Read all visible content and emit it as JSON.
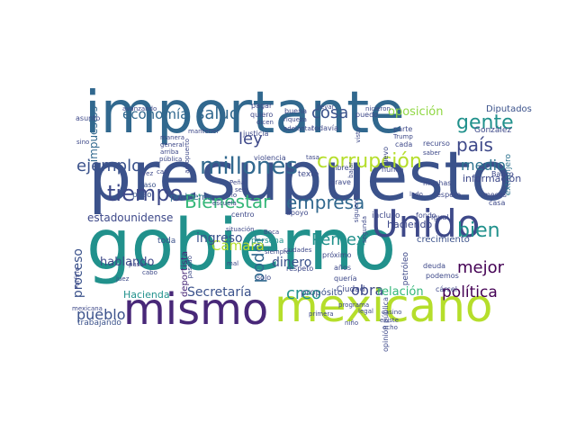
{
  "wordcloud": {
    "words": [
      {
        "text": "presupuesto",
        "color": "#3b528b"
      },
      {
        "text": "importante",
        "color": "#31688e"
      },
      {
        "text": "gobierno",
        "color": "#21918c"
      },
      {
        "text": "mismo",
        "color": "#482878"
      },
      {
        "text": "mexicano",
        "color": "#b5de2b"
      },
      {
        "text": "Unido",
        "color": "#3e4989"
      },
      {
        "text": "millones",
        "color": "#31688e"
      },
      {
        "text": "corrupción",
        "color": "#b5de2b"
      },
      {
        "text": "tiempo",
        "color": "#3e4989"
      },
      {
        "text": "empresa",
        "color": "#31688e"
      },
      {
        "text": "Bienestar",
        "color": "#35b779"
      },
      {
        "text": "Pemex",
        "color": "#21918c"
      },
      {
        "text": "gente",
        "color": "#21918c"
      },
      {
        "text": "país",
        "color": "#3e4989"
      },
      {
        "text": "cosa",
        "color": "#3b528b"
      },
      {
        "text": "salud",
        "color": "#31688e"
      },
      {
        "text": "ley",
        "color": "#3e4989"
      },
      {
        "text": "ejemplo",
        "color": "#3b528b"
      },
      {
        "text": "economía",
        "color": "#31688e"
      },
      {
        "text": "bien",
        "color": "#21918c"
      },
      {
        "text": "mejor",
        "color": "#440154"
      },
      {
        "text": "política",
        "color": "#440154"
      },
      {
        "text": "pueblo",
        "color": "#3b528b"
      },
      {
        "text": "proceso",
        "color": "#3b528b"
      },
      {
        "text": "poder",
        "color": "#31688e"
      },
      {
        "text": "creo",
        "color": "#21918c"
      },
      {
        "text": "obra",
        "color": "#3e4989"
      },
      {
        "text": "medio",
        "color": "#2c728e"
      },
      {
        "text": "oposición",
        "color": "#90d743"
      },
      {
        "text": "impuestos",
        "color": "#31688e"
      },
      {
        "text": "Cámara",
        "color": "#b5de2b"
      },
      {
        "text": "Secretaría",
        "color": "#3b528b"
      },
      {
        "text": "hablando",
        "color": "#3e4989"
      },
      {
        "text": "ingreso",
        "color": "#3b528b"
      },
      {
        "text": "dinero",
        "color": "#3b528b"
      },
      {
        "text": "estadounidense",
        "color": "#3e4989"
      },
      {
        "text": "relación",
        "color": "#35b779"
      },
      {
        "text": "propósito",
        "color": "#3b528b"
      },
      {
        "text": "Hacienda",
        "color": "#21918c"
      },
      {
        "text": "deportista",
        "color": "#482878"
      },
      {
        "text": "crecimiento",
        "color": "#3b528b"
      },
      {
        "text": "información",
        "color": "#3e4989"
      },
      {
        "text": "Diputados",
        "color": "#3b528b"
      },
      {
        "text": "González",
        "color": "#3e4989"
      },
      {
        "text": "extranjero",
        "color": "#2c728e"
      },
      {
        "text": "haciendo",
        "color": "#3e4989"
      },
      {
        "text": "problema",
        "color": "#31688e"
      },
      {
        "text": "Paso",
        "color": "#3b528b"
      },
      {
        "text": "peso",
        "color": "#3b528b"
      },
      {
        "text": "toda",
        "color": "#3b528b"
      },
      {
        "text": "trabajando",
        "color": "#3b528b"
      },
      {
        "text": "mexicana",
        "color": "#3e4989"
      },
      {
        "text": "apoyo",
        "color": "#3e4989"
      },
      {
        "text": "persona",
        "color": "#21918c"
      },
      {
        "text": "situación",
        "color": "#3e4989"
      },
      {
        "text": "centro",
        "color": "#3e4989"
      },
      {
        "text": "violencia",
        "color": "#3e4989"
      },
      {
        "text": "justicia",
        "color": "#3e4989"
      },
      {
        "text": "Banco",
        "color": "#3e4989"
      },
      {
        "text": "incluso",
        "color": "#3e4989"
      },
      {
        "text": "petróleo",
        "color": "#3e4989"
      },
      {
        "text": "deuda",
        "color": "#3e4989"
      },
      {
        "text": "podemos",
        "color": "#3e4989"
      },
      {
        "text": "cárcel",
        "color": "#3e4989"
      },
      {
        "text": "nunca",
        "color": "#3e4989"
      },
      {
        "text": "muchas",
        "color": "#3e4989"
      },
      {
        "text": "espero",
        "color": "#3e4989"
      },
      {
        "text": "meses",
        "color": "#3e4989"
      },
      {
        "text": "casa",
        "color": "#3e4989"
      },
      {
        "text": "fondo",
        "color": "#3e4989"
      },
      {
        "text": "igual",
        "color": "#3e4989"
      },
      {
        "text": "respeto",
        "color": "#3e4989"
      },
      {
        "text": "próximo",
        "color": "#3e4989"
      },
      {
        "text": "años",
        "color": "#3e4989"
      },
      {
        "text": "quería",
        "color": "#3e4989"
      },
      {
        "text": "Ciudad",
        "color": "#3e4989"
      },
      {
        "text": "solo",
        "color": "#3e4989"
      },
      {
        "text": "primera",
        "color": "#3e4989"
      },
      {
        "text": "opinión pública",
        "color": "#3e4989"
      },
      {
        "text": "programa",
        "color": "#3e4989"
      },
      {
        "text": "texto",
        "color": "#3e4989"
      },
      {
        "text": "libre",
        "color": "#3e4989"
      },
      {
        "text": "todavía",
        "color": "#3e4989"
      },
      {
        "text": "buena",
        "color": "#3e4989"
      },
      {
        "text": "riqueza",
        "color": "#3e4989"
      },
      {
        "text": "pagar",
        "color": "#3e4989"
      },
      {
        "text": "quiero",
        "color": "#3e4989"
      },
      {
        "text": "llevar",
        "color": "#3e4989"
      },
      {
        "text": "nicieron",
        "color": "#3e4989"
      },
      {
        "text": "puedo",
        "color": "#3e4989"
      },
      {
        "text": "parte",
        "color": "#3e4989"
      },
      {
        "text": "Trump",
        "color": "#3e4989"
      },
      {
        "text": "recurso",
        "color": "#3e4989"
      },
      {
        "text": "cada",
        "color": "#3e4989"
      },
      {
        "text": "nuevo",
        "color": "#3e4989"
      },
      {
        "text": "avanzando",
        "color": "#3e4989"
      },
      {
        "text": "asunto",
        "color": "#3e4989"
      },
      {
        "text": "sino",
        "color": "#3e4989"
      },
      {
        "text": "mantener",
        "color": "#3e4989"
      },
      {
        "text": "manera",
        "color": "#3e4989"
      },
      {
        "text": "general",
        "color": "#3e4989"
      },
      {
        "text": "arriba",
        "color": "#3e4989"
      },
      {
        "text": "pública",
        "color": "#3e4989"
      },
      {
        "text": "escuela",
        "color": "#3e4989"
      },
      {
        "text": "Boca",
        "color": "#3e4989"
      },
      {
        "text": "siempre",
        "color": "#3e4989"
      },
      {
        "text": "ciudades",
        "color": "#3e4989"
      },
      {
        "text": "Porfirio",
        "color": "#3e4989"
      },
      {
        "text": "pasa",
        "color": "#3e4989"
      },
      {
        "text": "cabo",
        "color": "#3e4989"
      },
      {
        "text": "juez",
        "color": "#3e4989"
      },
      {
        "text": "pasado",
        "color": "#3e4989"
      },
      {
        "text": "mal",
        "color": "#3e4989"
      },
      {
        "text": "legal",
        "color": "#3e4989"
      },
      {
        "text": "casino",
        "color": "#3e4989"
      },
      {
        "text": "existe",
        "color": "#3e4989"
      },
      {
        "text": "ocho",
        "color": "#3e4989"
      },
      {
        "text": "niño",
        "color": "#3e4989"
      },
      {
        "text": "grave",
        "color": "#3e4989"
      },
      {
        "text": "bajar",
        "color": "#3e4989"
      },
      {
        "text": "seis",
        "color": "#3e4989"
      },
      {
        "text": "casi",
        "color": "#3e4989"
      },
      {
        "text": "vez",
        "color": "#3e4989"
      },
      {
        "text": "río",
        "color": "#3e4989"
      },
      {
        "text": "tasa",
        "color": "#3e4989"
      },
      {
        "text": "aeropuerto",
        "color": "#3e4989"
      },
      {
        "text": "Peña",
        "color": "#3e4989"
      },
      {
        "text": "dicen",
        "color": "#3e4989"
      },
      {
        "text": "adelantar",
        "color": "#3e4989"
      },
      {
        "text": "visto",
        "color": "#3e4989"
      },
      {
        "text": "saber",
        "color": "#3e4989"
      },
      {
        "text": "lado",
        "color": "#3e4989"
      },
      {
        "text": "siguiente",
        "color": "#3e4989"
      },
      {
        "text": "segunda",
        "color": "#3e4989"
      }
    ]
  }
}
